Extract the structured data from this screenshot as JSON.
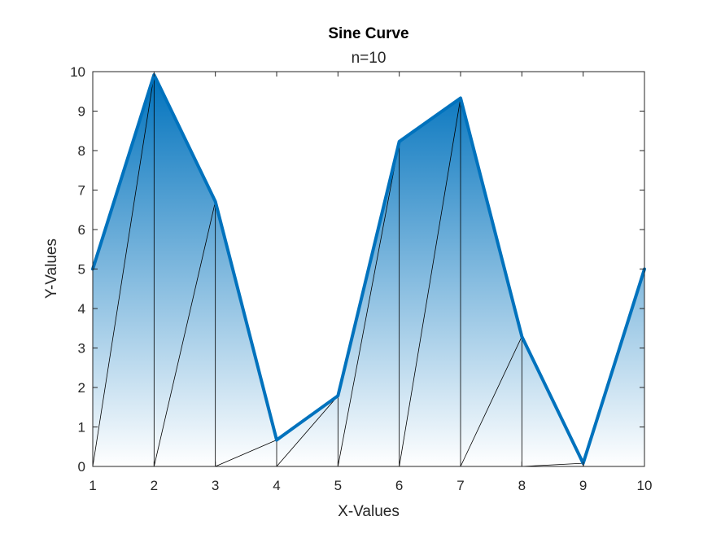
{
  "chart_data": {
    "type": "area",
    "title": "Sine Curve",
    "subtitle": "n=10",
    "xlabel": "X-Values",
    "ylabel": "Y-Values",
    "xlim": [
      1,
      10
    ],
    "ylim": [
      0,
      10
    ],
    "xticks": [
      1,
      2,
      3,
      4,
      5,
      6,
      7,
      8,
      9,
      10
    ],
    "yticks": [
      0,
      1,
      2,
      3,
      4,
      5,
      6,
      7,
      8,
      9,
      10
    ],
    "x": [
      1,
      2,
      3,
      4,
      5,
      6,
      7,
      8,
      9,
      10
    ],
    "series": [
      {
        "values": [
          5.0,
          9.92,
          6.71,
          0.67,
          1.79,
          8.23,
          9.33,
          3.29,
          0.08,
          5.0
        ]
      }
    ],
    "grid": false,
    "line_color": "#0072BD",
    "fill_color_top": "#0072BD",
    "fill_color_bottom": "#FFFFFF",
    "mesh_color": "#000000"
  }
}
